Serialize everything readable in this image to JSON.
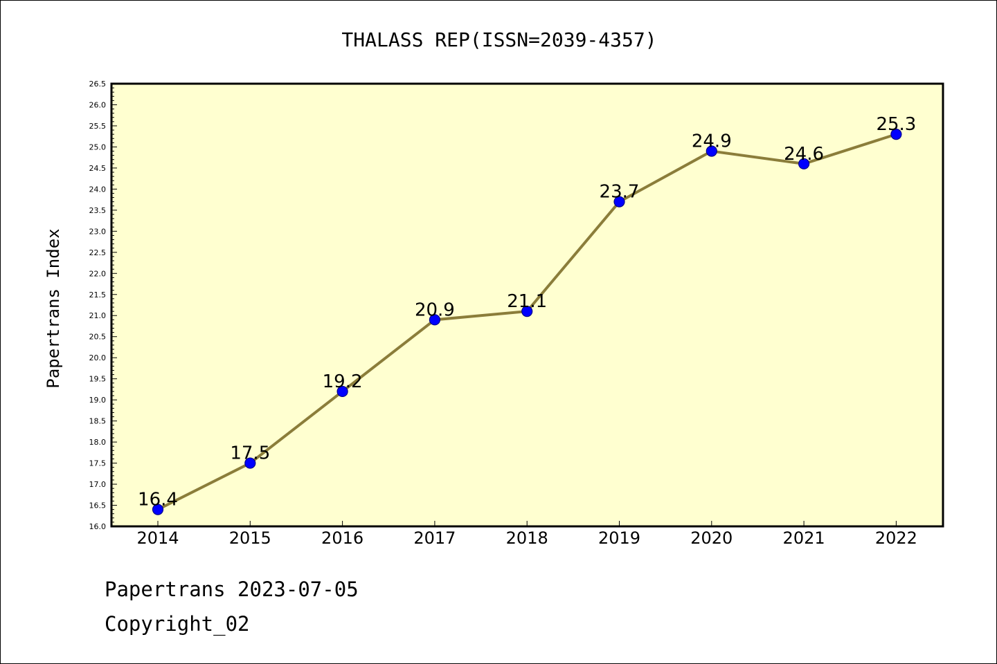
{
  "chart_data": {
    "type": "line",
    "title": "THALASS REP(ISSN=2039-4357)",
    "xlabel": "",
    "ylabel": "Papertrans Index",
    "categories": [
      "2014",
      "2015",
      "2016",
      "2017",
      "2018",
      "2019",
      "2020",
      "2021",
      "2022"
    ],
    "values": [
      16.4,
      17.5,
      19.2,
      20.9,
      21.1,
      23.7,
      24.9,
      24.6,
      25.3
    ],
    "data_labels": [
      "16.4",
      "17.5",
      "19.2",
      "20.9",
      "21.1",
      "23.7",
      "24.9",
      "24.6",
      "25.3"
    ],
    "ylim": [
      16.0,
      26.5
    ],
    "yticks": [
      "16.0",
      "16.5",
      "17.0",
      "17.5",
      "18.0",
      "18.5",
      "19.0",
      "19.5",
      "20.0",
      "20.5",
      "21.0",
      "21.5",
      "22.0",
      "22.5",
      "23.0",
      "23.5",
      "24.0",
      "24.5",
      "25.0",
      "25.5",
      "26.0",
      "26.5"
    ],
    "grid": false,
    "legend": "none",
    "colors": {
      "line": "#8b7d3a",
      "marker": "#0000ff",
      "marker_edge": "#00008b",
      "plot_background": "#ffffd0"
    }
  },
  "footer": {
    "source": "Papertrans 2023-07-05",
    "copyright": "Copyright_02"
  }
}
